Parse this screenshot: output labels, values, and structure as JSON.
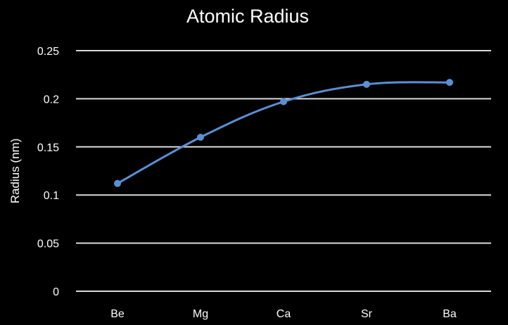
{
  "chart_data": {
    "type": "line",
    "title": "Atomic Radius",
    "xlabel": "",
    "ylabel": "Radius (nm)",
    "categories": [
      "Be",
      "Mg",
      "Ca",
      "Sr",
      "Ba"
    ],
    "series": [
      {
        "values": [
          0.112,
          0.16,
          0.197,
          0.215,
          0.217
        ]
      }
    ],
    "ylim": [
      0,
      0.25
    ],
    "yticks": [
      "0",
      "0.05",
      "0.1",
      "0.15",
      "0.2",
      "0.25"
    ],
    "grid": true,
    "legend": "none",
    "colors": {
      "background": "#000000",
      "line": "#5b8fd4",
      "grid": "#d9d9d9",
      "text": "#ffffff"
    }
  }
}
